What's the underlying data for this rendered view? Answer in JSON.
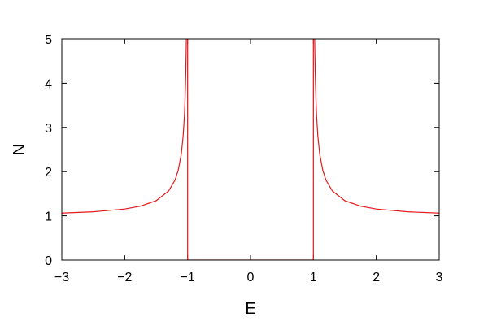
{
  "chart_data": {
    "type": "line",
    "title": "",
    "xlabel": "E",
    "ylabel": "N",
    "xlim": [
      -3,
      3
    ],
    "ylim": [
      0,
      5
    ],
    "grid": false,
    "legend": "none",
    "x_ticks": [
      {
        "value": -3,
        "label": "−3"
      },
      {
        "value": -2,
        "label": "−2"
      },
      {
        "value": -1,
        "label": "−1"
      },
      {
        "value": 0,
        "label": "0"
      },
      {
        "value": 1,
        "label": "1"
      },
      {
        "value": 2,
        "label": "2"
      },
      {
        "value": 3,
        "label": "3"
      }
    ],
    "y_ticks": [
      {
        "value": 0,
        "label": "0"
      },
      {
        "value": 1,
        "label": "1"
      },
      {
        "value": 2,
        "label": "2"
      },
      {
        "value": 3,
        "label": "3"
      },
      {
        "value": 4,
        "label": "4"
      },
      {
        "value": 5,
        "label": "5"
      }
    ],
    "series": [
      {
        "color": "#e8191c",
        "x": [
          -3,
          -2.5,
          -2,
          -1.75,
          -1.5,
          -1.3,
          -1.2,
          -1.15,
          -1.1,
          -1.07,
          -1.05,
          -1.04,
          -1.03,
          -1.025,
          -1.02,
          -1.015,
          -1.01,
          -1.0,
          -1.0,
          1.0,
          1.0,
          1.01,
          1.015,
          1.02,
          1.025,
          1.03,
          1.04,
          1.05,
          1.07,
          1.1,
          1.15,
          1.2,
          1.3,
          1.5,
          1.75,
          2,
          2.5,
          3
        ],
        "y": [
          1.061,
          1.091,
          1.155,
          1.219,
          1.342,
          1.565,
          1.809,
          2.025,
          2.4,
          2.821,
          3.279,
          3.648,
          4.172,
          4.559,
          5.0,
          5.0,
          5.0,
          5.0,
          0,
          0,
          5.0,
          5.0,
          5.0,
          5.0,
          4.559,
          4.172,
          3.648,
          3.279,
          2.821,
          2.4,
          2.025,
          1.809,
          1.565,
          1.342,
          1.219,
          1.155,
          1.091,
          1.061
        ]
      }
    ]
  }
}
